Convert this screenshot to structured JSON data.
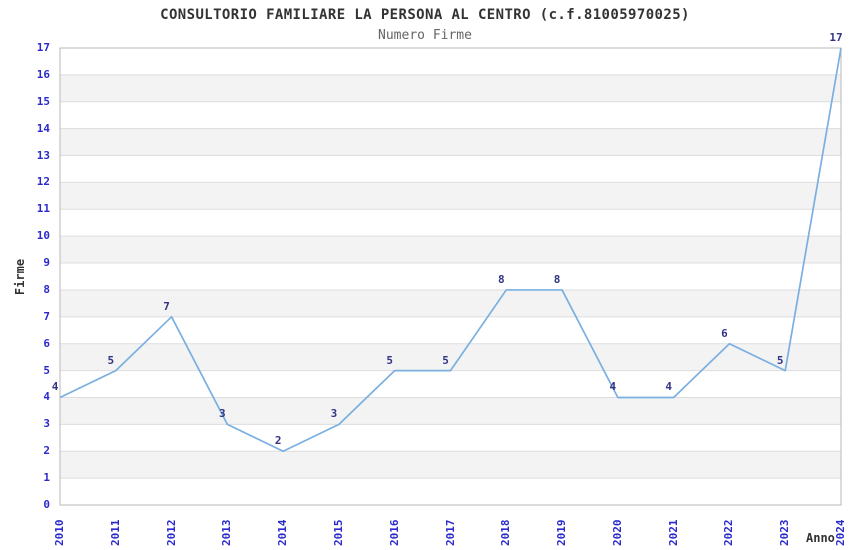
{
  "chart_data": {
    "type": "line",
    "title": "CONSULTORIO FAMILIARE LA PERSONA AL CENTRO (c.f.81005970025)",
    "subtitle": "Numero Firme",
    "xlabel": "Anno",
    "ylabel": "Firme",
    "categories": [
      "2010",
      "2011",
      "2012",
      "2013",
      "2014",
      "2015",
      "2016",
      "2017",
      "2018",
      "2019",
      "2020",
      "2021",
      "2022",
      "2023",
      "2024"
    ],
    "values": [
      4,
      5,
      7,
      3,
      2,
      3,
      5,
      5,
      8,
      8,
      4,
      4,
      6,
      5,
      17
    ],
    "ylim": [
      0,
      17
    ],
    "y_tick_step": 1,
    "grid": "horizontal-bands",
    "legend": "none",
    "value_labels_shown": true,
    "colors": {
      "line": "#7aafe0",
      "tick_text": "#2a2acc",
      "value_label_text": "#333388",
      "title_text": "#333333",
      "subtitle_text": "#666666",
      "axis_title_text": "#333333",
      "band_alt": "#f3f3f3",
      "band_main": "#ffffff",
      "gridline": "#dddddd",
      "plot_border": "#b8b8b8",
      "background": "#ffffff"
    }
  }
}
